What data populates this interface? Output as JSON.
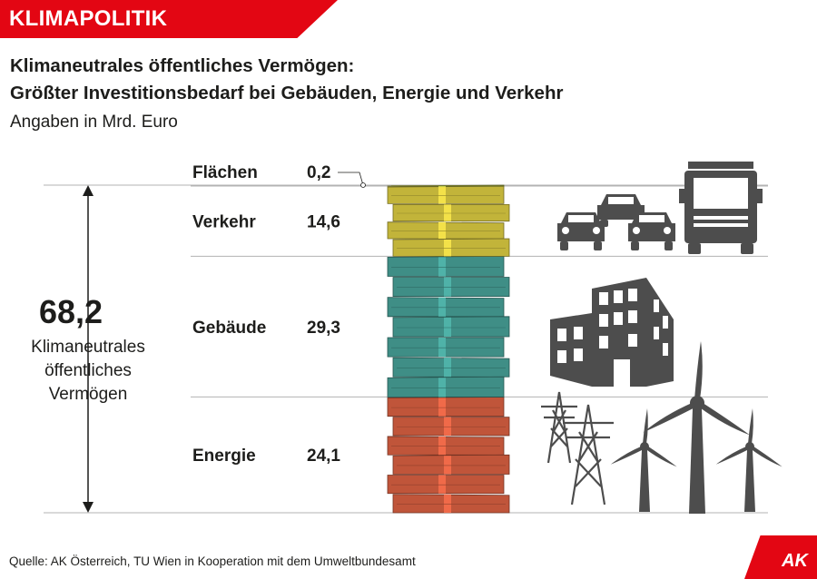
{
  "header": {
    "badge": "KLIMAPOLITIK"
  },
  "title_line1": "Klimaneutrales öffentliches Vermögen:",
  "title_line2": "Größter Investitionsbedarf bei Gebäuden, Energie und Verkehr",
  "subtitle": "Angaben in Mrd. Euro",
  "total": {
    "value": "68,2",
    "label_lines": [
      "Klimaneutrales",
      "öffentliches",
      "Vermögen"
    ]
  },
  "chart_data": {
    "type": "bar",
    "stacked": true,
    "orientation": "vertical",
    "title": "Klimaneutrales öffentliches Vermögen: Größter Investitionsbedarf bei Gebäuden, Energie und Verkehr",
    "subtitle": "Angaben in Mrd. Euro",
    "total": 68.2,
    "series": [
      {
        "name": "Energie",
        "label": "24,1",
        "value": 24.1,
        "color": "#c0553a"
      },
      {
        "name": "Gebäude",
        "label": "29,3",
        "value": 29.3,
        "color": "#3f8e86"
      },
      {
        "name": "Verkehr",
        "label": "14,6",
        "value": 14.6,
        "color": "#c2b43a"
      },
      {
        "name": "Flächen",
        "label": "0,2",
        "value": 0.2,
        "color": "#9aa33a"
      }
    ]
  },
  "icons": [
    "vehicles-icon",
    "truck-icon",
    "building-icon",
    "power-pylon-icon",
    "wind-turbine-icon"
  ],
  "source": "Quelle: AK Österreich, TU Wien in Kooperation mit dem Umweltbundesamt",
  "logo": "AK",
  "colors": {
    "accent": "#e30613",
    "icon_gray": "#4d4d4d",
    "line_gray": "#b3b3b3"
  }
}
